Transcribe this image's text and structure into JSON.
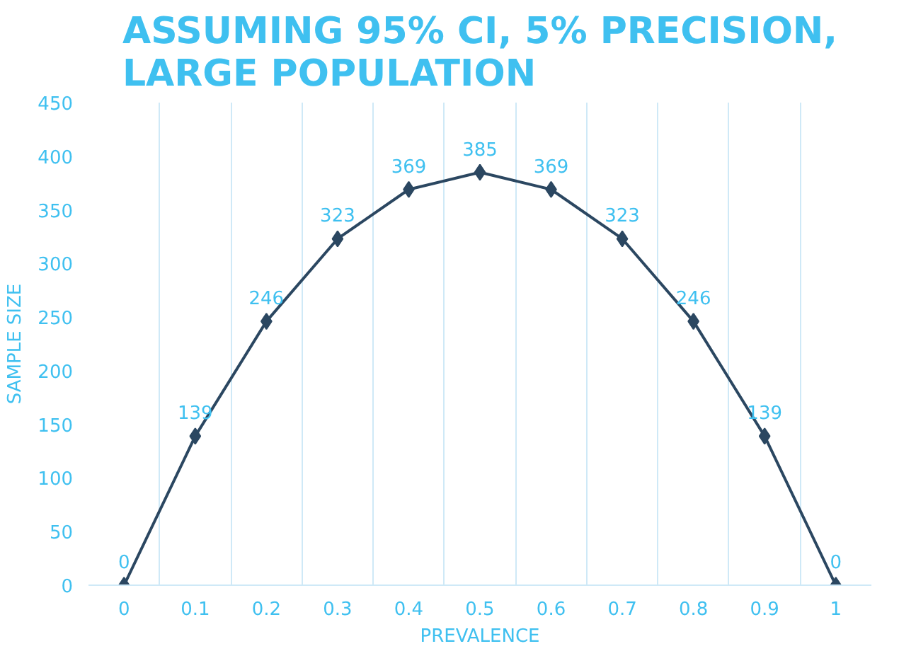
{
  "chart_data": {
    "type": "line",
    "title": "ASSUMING 95% CI, 5% PRECISION,\nLARGE POPULATION",
    "xlabel": "PREVALENCE",
    "ylabel": "SAMPLE SIZE",
    "categories": [
      "0",
      "0.1",
      "0.2",
      "0.3",
      "0.4",
      "0.5",
      "0.6",
      "0.7",
      "0.8",
      "0.9",
      "1"
    ],
    "series": [
      {
        "color": "#2b4761",
        "values": [
          0,
          139,
          246,
          323,
          369,
          385,
          369,
          323,
          246,
          139,
          0
        ]
      }
    ],
    "ylim": [
      0,
      450
    ],
    "yticks": [
      0,
      50,
      100,
      150,
      200,
      250,
      300,
      350,
      400,
      450
    ],
    "grid": "x",
    "marker": "diamond",
    "line_style": "solid",
    "data_labels": true
  }
}
